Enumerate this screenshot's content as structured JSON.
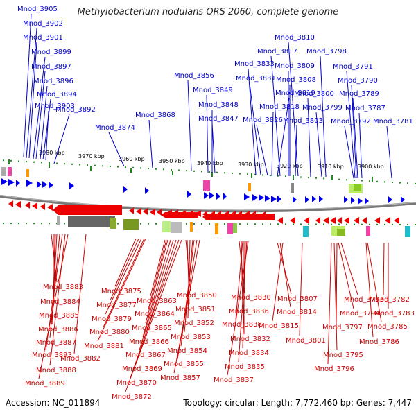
{
  "title": "Methylobacterium nodulans ORS 2060, complete genome",
  "footer": {
    "accession": "Accession: NC_011894",
    "summary": "Topology: circular; Length: 7,772,460 bp; Genes: 7,447"
  },
  "colors": {
    "forward_label": "#0000cc",
    "reverse_label": "#cc0000",
    "forward_gene": "#0000ee",
    "reverse_gene": "#ee0000",
    "backbone": "#777777",
    "tick": "#228822"
  },
  "scale": {
    "labels": [
      {
        "text": "3980 kbp"
      },
      {
        "text": "3970 kbp"
      },
      {
        "text": "3960 kbp"
      },
      {
        "text": "3950 kbp"
      },
      {
        "text": "3940 kbp"
      },
      {
        "text": "3930 kbp"
      },
      {
        "text": "3920 kbp"
      },
      {
        "text": "3910 kbp"
      },
      {
        "text": "3900 kbp"
      }
    ]
  },
  "forward_labels": [
    "Mnod_3905",
    "Mnod_3902",
    "Mnod_3901",
    "Mnod_3899",
    "Mnod_3897",
    "Mnod_3896",
    "Mnod_3894",
    "Mnod_3903",
    "Mnod_3892",
    "Mnod_3874",
    "Mnod_3868",
    "Mnod_3856",
    "Mnod_3849",
    "Mnod_3848",
    "Mnod_3847",
    "Mnod_3833",
    "Mnod_3831",
    "Mnod_3826",
    "Mnod_3810",
    "Mnod_3817",
    "Mnod_3809",
    "Mnod_3808",
    "Mnod_3819",
    "Mnod_3818",
    "Mnod_3803",
    "Mnod_3800",
    "Mnod_3799",
    "Mnod_3798",
    "Mnod_3791",
    "Mnod_3790",
    "Mnod_3789",
    "Mnod_3787",
    "Mnod_3792",
    "Mnod_3781"
  ],
  "reverse_labels": [
    "Mnod_3883",
    "Mnod_3884",
    "Mnod_3885",
    "Mnod_3886",
    "Mnod_3887",
    "Mnod_3893",
    "Mnod_3888",
    "Mnod_3889",
    "Mnod_3882",
    "Mnod_3875",
    "Mnod_3877",
    "Mnod_3879",
    "Mnod_3880",
    "Mnod_3881",
    "Mnod_3863",
    "Mnod_3864",
    "Mnod_3865",
    "Mnod_3866",
    "Mnod_3867",
    "Mnod_3869",
    "Mnod_3870",
    "Mnod_3872",
    "Mnod_3850",
    "Mnod_3851",
    "Mnod_3852",
    "Mnod_3853",
    "Mnod_3854",
    "Mnod_3855",
    "Mnod_3857",
    "Mnod_3830",
    "Mnod_3836",
    "Mnod_3838",
    "Mnod_3832",
    "Mnod_3834",
    "Mnod_3835",
    "Mnod_3837",
    "Mnod_3807",
    "Mnod_3814",
    "Mnod_3815",
    "Mnod_3801",
    "Mnod_3793",
    "Mnod_3794",
    "Mnod_3797",
    "Mnod_3795",
    "Mnod_3796",
    "Mnod_3782",
    "Mnod_3783",
    "Mnod_3785",
    "Mnod_3786"
  ]
}
